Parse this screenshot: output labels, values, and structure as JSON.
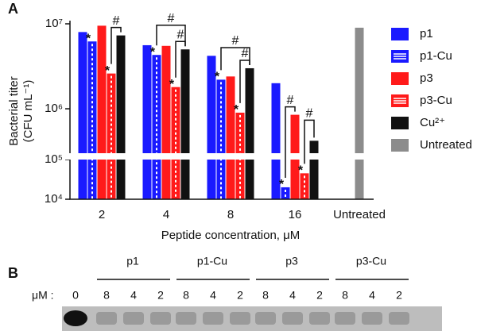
{
  "chart_data": {
    "type": "bar",
    "panel_label": "A",
    "y_label": [
      "Bacterial titer",
      "(CFU mL⁻¹)"
    ],
    "x_label": "Peptide concentration, μM",
    "log_scale": true,
    "ylim": [
      10000,
      10000000
    ],
    "ybreak": [
      100000,
      300000
    ],
    "yticks": [
      {
        "value": 10000,
        "label": "10⁴"
      },
      {
        "value": 100000,
        "label": "10⁵"
      },
      {
        "value": 1000000,
        "label": "10⁶"
      },
      {
        "value": 10000000,
        "label": "10⁷"
      }
    ],
    "categories": [
      "2",
      "4",
      "8",
      "16",
      "Untreated"
    ],
    "series": [
      {
        "name": "p1",
        "color": "#1a1aff",
        "hatch": false,
        "values": [
          8000000,
          5600000,
          4200000,
          2000000,
          null
        ]
      },
      {
        "name": "p1-Cu",
        "color": "#1a1aff",
        "hatch": true,
        "values": [
          6200000,
          4300000,
          2200000,
          20000,
          null
        ]
      },
      {
        "name": "p3",
        "color": "#ff1a1a",
        "hatch": false,
        "values": [
          9500000,
          5500000,
          2400000,
          850000,
          null
        ]
      },
      {
        "name": "p3-Cu",
        "color": "#ff1a1a",
        "hatch": true,
        "values": [
          2600000,
          1800000,
          900000,
          45000,
          null
        ]
      },
      {
        "name": "Cu²⁺",
        "color": "#111111",
        "hatch": false,
        "values": [
          7300000,
          5000000,
          3000000,
          420000,
          null
        ]
      },
      {
        "name": "Untreated",
        "color": "#8c8c8c",
        "hatch": false,
        "values": [
          null,
          null,
          null,
          null,
          9000000
        ]
      }
    ],
    "significance": [
      {
        "text": "*",
        "series": "p1-Cu",
        "category": "2"
      },
      {
        "text": "*",
        "series": "p3-Cu",
        "category": "2"
      },
      {
        "text": "*",
        "series": "p1-Cu",
        "category": "4"
      },
      {
        "text": "*",
        "series": "p3-Cu",
        "category": "4"
      },
      {
        "text": "*",
        "series": "p1-Cu",
        "category": "8"
      },
      {
        "text": "*",
        "series": "p3-Cu",
        "category": "8"
      },
      {
        "text": "*",
        "series": "p1-Cu",
        "category": "16"
      },
      {
        "text": "*",
        "series": "p3-Cu",
        "category": "16"
      }
    ],
    "brackets": [
      {
        "text": "#",
        "from": "p3-Cu",
        "to": "Cu²⁺",
        "category": "2"
      },
      {
        "text": "#",
        "from": "p3-Cu",
        "to": "Cu²⁺",
        "category": "4"
      },
      {
        "text": "#",
        "from": "p1-Cu",
        "to": "Cu²⁺",
        "category": "4"
      },
      {
        "text": "#",
        "from": "p3-Cu",
        "to": "Cu²⁺",
        "category": "8"
      },
      {
        "text": "#",
        "from": "p1-Cu",
        "to": "Cu²⁺",
        "category": "8"
      },
      {
        "text": "#",
        "from": "p1-Cu",
        "to": "p3",
        "category": "16"
      },
      {
        "text": "#",
        "from": "p3-Cu",
        "to": "Cu²⁺",
        "category": "16"
      }
    ]
  },
  "gel": {
    "panel_label": "B",
    "unit_label": "μM :",
    "control_lane": "0",
    "groups": [
      {
        "name": "p1",
        "lanes": [
          "8",
          "4",
          "2"
        ]
      },
      {
        "name": "p1-Cu",
        "lanes": [
          "8",
          "4",
          "2"
        ]
      },
      {
        "name": "p3",
        "lanes": [
          "8",
          "4",
          "2"
        ]
      },
      {
        "name": "p3-Cu",
        "lanes": [
          "8",
          "4",
          "2"
        ]
      }
    ]
  }
}
